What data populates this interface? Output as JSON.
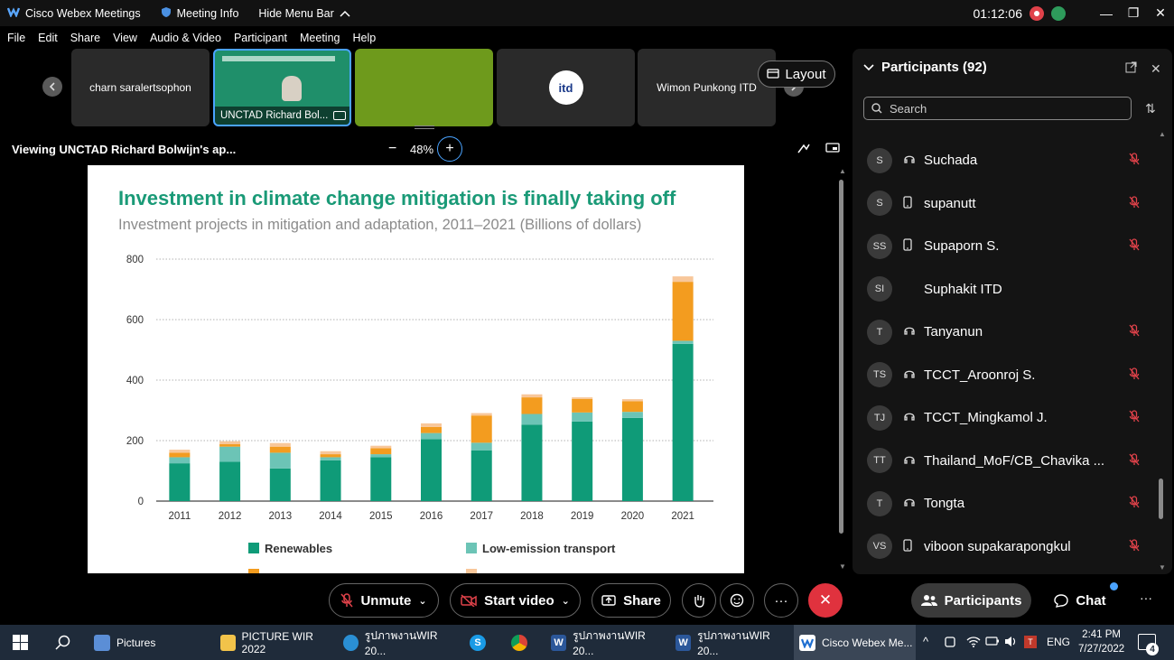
{
  "titlebar": {
    "app_name": "Cisco Webex Meetings",
    "meeting_info": "Meeting Info",
    "hide_menu": "Hide Menu Bar",
    "timer": "01:12:06",
    "minimize": "—",
    "restore": "❐",
    "close": "✕"
  },
  "menu": [
    "File",
    "Edit",
    "Share",
    "View",
    "Audio & Video",
    "Participant",
    "Meeting",
    "Help"
  ],
  "tiles": [
    {
      "label": "charn saralertsophon"
    },
    {
      "label": "UNCTAD Richard Bol..."
    },
    {
      "label": ""
    },
    {
      "label": "itd"
    },
    {
      "label": "Wimon Punkong ITD"
    }
  ],
  "layout_label": "Layout",
  "viewbar": {
    "viewing": "Viewing UNCTAD Richard Bolwijn's ap...",
    "zoom": "48%"
  },
  "slide": {
    "title": "Investment in climate change mitigation is finally taking off",
    "subtitle": "Investment projects in mitigation and adaptation, 2011–2021 (Billions of dollars)"
  },
  "chart_data": {
    "type": "bar",
    "stacked": true,
    "categories": [
      "2011",
      "2012",
      "2013",
      "2014",
      "2015",
      "2016",
      "2017",
      "2018",
      "2019",
      "2020",
      "2021"
    ],
    "ylim": [
      0,
      800
    ],
    "yticks": [
      "0",
      "200",
      "400",
      "600",
      "800"
    ],
    "series": [
      {
        "name": "Renewables",
        "color": "#0f9b78",
        "values": [
          125,
          130,
          108,
          135,
          145,
          205,
          168,
          253,
          263,
          275,
          520
        ]
      },
      {
        "name": "Low-emission transport",
        "color": "#6cc4b6",
        "values": [
          20,
          50,
          52,
          10,
          10,
          20,
          25,
          35,
          30,
          20,
          10
        ]
      },
      {
        "name": "",
        "color": "#f39c1f",
        "values": [
          15,
          8,
          20,
          10,
          20,
          20,
          90,
          55,
          45,
          35,
          195
        ]
      },
      {
        "name": "",
        "color": "#f8c79a",
        "values": [
          10,
          10,
          12,
          10,
          8,
          12,
          8,
          10,
          5,
          7,
          18
        ]
      }
    ],
    "legend": [
      "Renewables",
      "Low-emission transport"
    ]
  },
  "participants": {
    "header": "Participants (92)",
    "search_placeholder": "Search",
    "list": [
      {
        "initials": "S",
        "name": "Suchada",
        "device": "headset"
      },
      {
        "initials": "S",
        "name": "supanutt",
        "device": "phone"
      },
      {
        "initials": "SS",
        "name": "Supaporn S.",
        "device": "phone"
      },
      {
        "initials": "SI",
        "name": "Suphakit ITD",
        "device": ""
      },
      {
        "initials": "T",
        "name": "Tanyanun",
        "device": "headset"
      },
      {
        "initials": "TS",
        "name": "TCCT_Aroonroj S.",
        "device": "headset"
      },
      {
        "initials": "TJ",
        "name": "TCCT_Mingkamol J.",
        "device": "headset"
      },
      {
        "initials": "TT",
        "name": "Thailand_MoF/CB_Chavika ...",
        "device": "headset"
      },
      {
        "initials": "T",
        "name": "Tongta",
        "device": "headset"
      },
      {
        "initials": "VS",
        "name": "viboon supakarapongkul",
        "device": "phone"
      }
    ]
  },
  "controls": {
    "unmute": "Unmute",
    "start_video": "Start video",
    "share": "Share",
    "participants": "Participants",
    "chat": "Chat"
  },
  "taskbar": {
    "items": [
      "Pictures",
      "PICTURE WIR 2022",
      "รูปภาพงานWIR 20...",
      "รูปภาพงานWIR 20...",
      "รูปภาพงานWIR 20...",
      "Cisco Webex Me..."
    ],
    "lang": "ENG",
    "time": "2:41 PM",
    "date": "7/27/2022",
    "notifications": "4"
  }
}
